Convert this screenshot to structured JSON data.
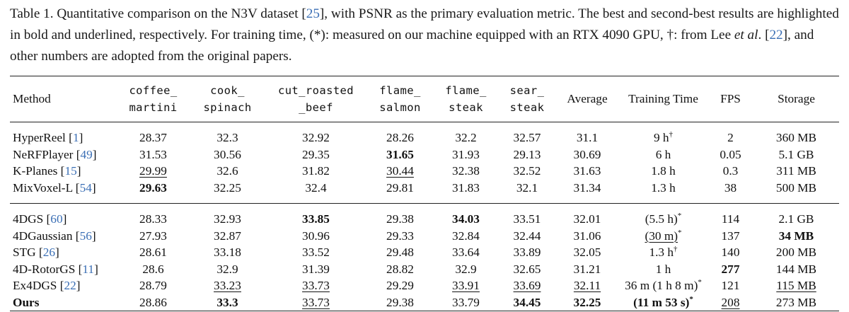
{
  "caption": {
    "p1": "Table 1. Quantitative comparison on the N3V dataset [",
    "r1": "25",
    "p2": "], with PSNR as the primary evaluation metric. The best and second-best results are highlighted in bold and underlined, respectively. For training time, (*): measured on our machine equipped with an RTX 4090 GPU, †: from Lee ",
    "etal": "et al",
    "p3": ". [",
    "r2": "22",
    "p4": "], and other numbers are adopted from the original papers."
  },
  "headers": {
    "method": "Method",
    "coffee_a": "coffee_",
    "coffee_b": "martini",
    "cook_a": "cook_",
    "cook_b": "spinach",
    "cut_a": "cut_roasted",
    "cut_b": "_beef",
    "flame_s_a": "flame_",
    "flame_s_b": "salmon",
    "flame_st_a": "flame_",
    "flame_st_b": "steak",
    "sear_a": "sear_",
    "sear_b": "steak",
    "average": "Average",
    "training": "Training Time",
    "fps": "FPS",
    "storage": "Storage"
  },
  "rows": [
    {
      "name": "HyperReel",
      "ref": "1",
      "v": [
        "28.37",
        "32.3",
        "32.92",
        "28.26",
        "32.2",
        "32.57",
        "31.1"
      ],
      "time": "9 h",
      "time_sup": "†",
      "fps": "2",
      "storage": "360 MB"
    },
    {
      "name": "NeRFPlayer",
      "ref": "49",
      "v": [
        "31.53",
        "30.56",
        "29.35",
        "31.65",
        "31.93",
        "29.13",
        "30.69"
      ],
      "time": "6 h",
      "time_sup": "",
      "fps": "0.05",
      "storage": "5.1 GB"
    },
    {
      "name": "K-Planes",
      "ref": "15",
      "v": [
        "29.99",
        "32.6",
        "31.82",
        "30.44",
        "32.38",
        "32.52",
        "31.63"
      ],
      "time": "1.8 h",
      "time_sup": "",
      "fps": "0.3",
      "storage": "311 MB"
    },
    {
      "name": "MixVoxel-L",
      "ref": "54",
      "v": [
        "29.63",
        "32.25",
        "32.4",
        "29.81",
        "31.83",
        "32.1",
        "31.34"
      ],
      "time": "1.3 h",
      "time_sup": "",
      "fps": "38",
      "storage": "500 MB"
    },
    {
      "name": "4DGS",
      "ref": "60",
      "v": [
        "28.33",
        "32.93",
        "33.85",
        "29.38",
        "34.03",
        "33.51",
        "32.01"
      ],
      "time": "(5.5 h)",
      "time_sup": "*",
      "fps": "114",
      "storage": "2.1 GB"
    },
    {
      "name": "4DGaussian",
      "ref": "56",
      "v": [
        "27.93",
        "32.87",
        "30.96",
        "29.33",
        "32.84",
        "32.44",
        "31.06"
      ],
      "time": "(30 m)",
      "time_sup": "*",
      "fps": "137",
      "storage": "34 MB"
    },
    {
      "name": "STG",
      "ref": "26",
      "v": [
        "28.61",
        "33.18",
        "33.52",
        "29.48",
        "33.64",
        "33.89",
        "32.05"
      ],
      "time": "1.3 h",
      "time_sup": "†",
      "fps": "140",
      "storage": "200 MB"
    },
    {
      "name": "4D-RotorGS",
      "ref": "11",
      "v": [
        "28.6",
        "32.9",
        "31.39",
        "28.82",
        "32.9",
        "32.65",
        "31.21"
      ],
      "time": "1 h",
      "time_sup": "",
      "fps": "277",
      "storage": "144 MB"
    },
    {
      "name": "Ex4DGS",
      "ref": "22",
      "v": [
        "28.79",
        "33.23",
        "33.73",
        "29.29",
        "33.91",
        "33.69",
        "32.11"
      ],
      "time": "36 m (1 h 8 m)",
      "time_sup": "*",
      "fps": "121",
      "storage": "115 MB"
    },
    {
      "name": "Ours",
      "ref": "",
      "v": [
        "28.86",
        "33.3",
        "33.73",
        "29.38",
        "33.79",
        "34.45",
        "32.25"
      ],
      "time": "(11 m 53 s)",
      "time_sup": "*",
      "fps": "208",
      "storage": "273 MB"
    }
  ],
  "highlight_rule": "Best results in bold, second-best underlined",
  "colors": {
    "citation": "#3b6fb5",
    "text": "#111111",
    "rule": "#222222"
  }
}
